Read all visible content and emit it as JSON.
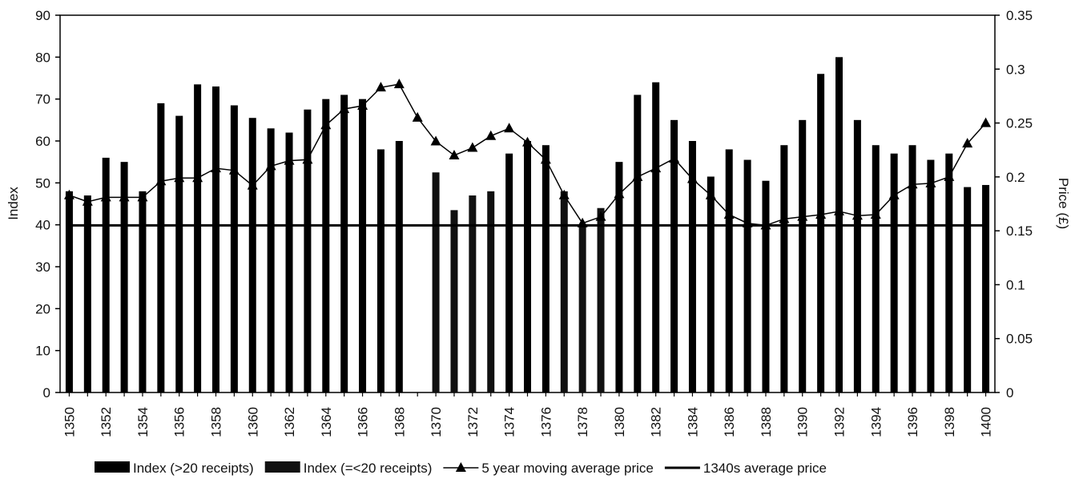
{
  "chart_data": {
    "type": "bar",
    "ylabel": "Index",
    "y2label": "Price (£)",
    "categories": [
      "1350",
      null,
      "1352",
      null,
      "1354",
      null,
      "1356",
      null,
      "1358",
      null,
      "1360",
      null,
      "1362",
      null,
      "1364",
      null,
      "1366",
      null,
      "1368",
      null,
      "1370",
      null,
      "1372",
      null,
      "1374",
      null,
      "1376",
      null,
      "1378",
      null,
      "1380",
      null,
      "1382",
      null,
      "1384",
      null,
      "1386",
      null,
      "1388",
      null,
      "1390",
      null,
      "1392",
      null,
      "1394",
      null,
      "1396",
      null,
      "1398",
      null,
      "1400"
    ],
    "series": [
      {
        "name": "Index (>20 receipts)",
        "type": "bar",
        "color": "#000000",
        "values": [
          48,
          47,
          56,
          55,
          48,
          69,
          66,
          73.5,
          73,
          68.5,
          65.5,
          63,
          62,
          67.5,
          70,
          71,
          70,
          58,
          60,
          null,
          null,
          null,
          null,
          null,
          57,
          60,
          59,
          null,
          null,
          null,
          55,
          71,
          74,
          65,
          60,
          51.5,
          58,
          55.5,
          50.5,
          59,
          65,
          76,
          80,
          65,
          59,
          57,
          59,
          55.5,
          57,
          49,
          49.5
        ]
      },
      {
        "name": "Index (=<20 receipts)",
        "type": "bar",
        "color": "#111111",
        "values": [
          null,
          null,
          null,
          null,
          null,
          null,
          null,
          null,
          null,
          null,
          null,
          null,
          null,
          null,
          null,
          null,
          null,
          null,
          null,
          null,
          52.5,
          43.5,
          47,
          48,
          null,
          null,
          null,
          48,
          40,
          44,
          null,
          null,
          null,
          null,
          null,
          null,
          null,
          null,
          null,
          null,
          null,
          null,
          null,
          null,
          null,
          null,
          null,
          null,
          null,
          null,
          null
        ]
      },
      {
        "name": "5 year moving average price",
        "type": "line",
        "marker": "triangle",
        "axis": "y2",
        "color": "#000000",
        "values": [
          0.183,
          0.177,
          0.181,
          0.181,
          0.181,
          0.196,
          0.199,
          0.199,
          0.208,
          0.206,
          0.192,
          0.21,
          0.215,
          0.216,
          0.248,
          0.263,
          0.266,
          0.283,
          0.286,
          0.255,
          0.233,
          0.22,
          0.227,
          0.238,
          0.245,
          0.232,
          0.216,
          0.183,
          0.157,
          0.163,
          0.184,
          0.2,
          0.208,
          0.217,
          0.198,
          0.183,
          0.165,
          0.157,
          0.155,
          0.161,
          0.163,
          0.165,
          0.168,
          0.164,
          0.165,
          0.183,
          0.193,
          0.194,
          0.2,
          0.231,
          0.25
        ]
      },
      {
        "name": "1340s average price",
        "type": "line",
        "axis": "y2",
        "color": "#000000",
        "values": [
          0.155,
          0.155,
          0.155,
          0.155,
          0.155,
          0.155,
          0.155,
          0.155,
          0.155,
          0.155,
          0.155,
          0.155,
          0.155,
          0.155,
          0.155,
          0.155,
          0.155,
          0.155,
          0.155,
          0.155,
          0.155,
          0.155,
          0.155,
          0.155,
          0.155,
          0.155,
          0.155,
          0.155,
          0.155,
          0.155,
          0.155,
          0.155,
          0.155,
          0.155,
          0.155,
          0.155,
          0.155,
          0.155,
          0.155,
          0.155,
          0.155,
          0.155,
          0.155,
          0.155,
          0.155,
          0.155,
          0.155,
          0.155,
          0.155,
          0.155,
          0.155
        ]
      }
    ],
    "ylim": [
      0,
      90
    ],
    "yticks": [
      0,
      10,
      20,
      30,
      40,
      50,
      60,
      70,
      80,
      90
    ],
    "y2lim": [
      0,
      0.35
    ],
    "y2ticks": [
      0,
      0.05,
      0.1,
      0.15,
      0.2,
      0.25,
      0.3,
      0.35
    ],
    "grid": false,
    "legend": "bottom"
  }
}
